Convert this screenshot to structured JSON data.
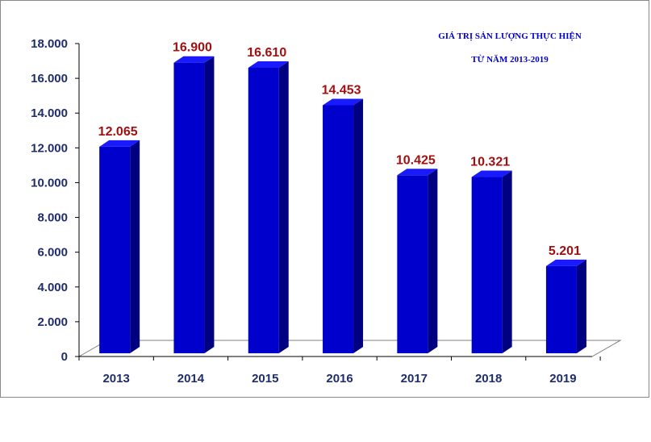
{
  "chart_data": {
    "type": "bar",
    "title_lines": [
      "GIÁ TRỊ SẢN LƯỢNG THỰC HIỆN",
      "TỪ NĂM 2013-2019"
    ],
    "categories": [
      "2013",
      "2014",
      "2015",
      "2016",
      "2017",
      "2018",
      "2019"
    ],
    "values": [
      12065,
      16900,
      16610,
      14453,
      10425,
      10321,
      5201
    ],
    "value_labels": [
      "12.065",
      "16.900",
      "16.610",
      "14.453",
      "10.425",
      "10.321",
      "5.201"
    ],
    "y_ticks": [
      0,
      2000,
      4000,
      6000,
      8000,
      10000,
      12000,
      14000,
      16000,
      18000
    ],
    "y_tick_labels": [
      "0",
      "2.000",
      "4.000",
      "6.000",
      "8.000",
      "10.000",
      "12.000",
      "14.000",
      "16.000",
      "18.000"
    ],
    "ylim": [
      0,
      18000
    ],
    "xlabel": "",
    "ylabel": "",
    "grid": false,
    "legend": false,
    "style": "3d-column"
  },
  "colors": {
    "bar_front": "#0000cc",
    "bar_side": "#000080",
    "bar_top": "#1a1aff",
    "data_label": "#a01010",
    "tick_label": "#1f2d6b",
    "title": "#0000cc",
    "axis": "#000000",
    "floor": "#ffffff"
  }
}
